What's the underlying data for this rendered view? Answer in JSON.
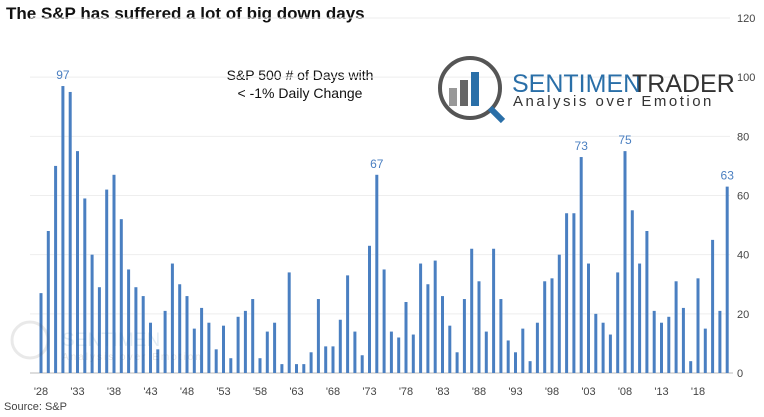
{
  "chart_data": {
    "type": "bar",
    "title": "The S&P has suffered a lot of big down days",
    "annotation": [
      "S&P 500 # of Days with",
      "< -1% Daily Change"
    ],
    "source": "Source: S&P",
    "x_start": 1928,
    "values": [
      27,
      48,
      70,
      97,
      95,
      75,
      59,
      40,
      29,
      62,
      67,
      52,
      35,
      29,
      26,
      17,
      8,
      21,
      37,
      30,
      26,
      15,
      22,
      17,
      8,
      16,
      5,
      19,
      21,
      25,
      5,
      14,
      17,
      3,
      34,
      3,
      3,
      7,
      25,
      9,
      9,
      18,
      33,
      14,
      6,
      43,
      67,
      35,
      14,
      12,
      24,
      13,
      37,
      30,
      38,
      26,
      16,
      7,
      25,
      42,
      31,
      14,
      42,
      25,
      11,
      7,
      15,
      4,
      17,
      31,
      32,
      40,
      54,
      54,
      73,
      37,
      20,
      17,
      13,
      34,
      75,
      55,
      37,
      48,
      21,
      17,
      19,
      31,
      22,
      4,
      32,
      15,
      45,
      21,
      63
    ],
    "data_labels": [
      {
        "year": 1931,
        "text": "97"
      },
      {
        "year": 1974,
        "text": "67"
      },
      {
        "year": 2002,
        "text": "73"
      },
      {
        "year": 2008,
        "text": "75"
      },
      {
        "year": 2022,
        "text": "63"
      }
    ],
    "x_ticks": [
      "'28",
      "'33",
      "'38",
      "'43",
      "'48",
      "'53",
      "'58",
      "'63",
      "'68",
      "'73",
      "'78",
      "'83",
      "'88",
      "'93",
      "'98",
      "'03",
      "'08",
      "'13",
      "'18"
    ],
    "y_ticks": [
      0,
      20,
      40,
      60,
      80,
      100,
      120
    ],
    "ylim": [
      0,
      120
    ],
    "y_axis_side": "right",
    "grid": true,
    "bar_color": "#4a7fc1"
  },
  "logo": {
    "name_a": "SENTIMEN",
    "name_b": "TRADER",
    "tagline": "Analysis over Emotion",
    "brand_color": "#2a6fa8"
  }
}
